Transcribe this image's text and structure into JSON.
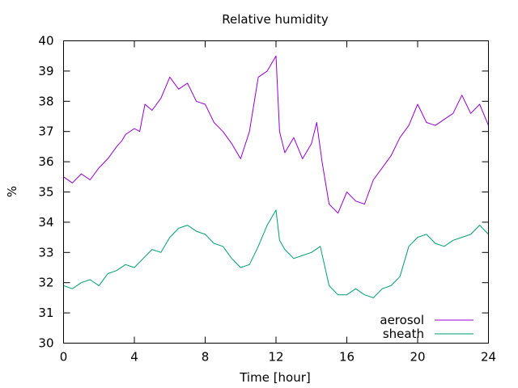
{
  "chart_data": {
    "type": "line",
    "title": "Relative humidity",
    "xlabel": "Time [hour]",
    "ylabel": "%",
    "xlim": [
      0,
      24
    ],
    "ylim": [
      30,
      40
    ],
    "xticks": [
      0,
      4,
      8,
      12,
      16,
      20,
      24
    ],
    "yticks": [
      30,
      31,
      32,
      33,
      34,
      35,
      36,
      37,
      38,
      39,
      40
    ],
    "grid": false,
    "legend": "bottom-right",
    "series": [
      {
        "name": "aerosol",
        "color": "#9400d3",
        "x": [
          0,
          0.5,
          1,
          1.5,
          2,
          2.5,
          3,
          3.3,
          3.5,
          4,
          4.3,
          4.6,
          5,
          5.5,
          6,
          6.5,
          7,
          7.5,
          8,
          8.5,
          9,
          9.5,
          10,
          10.5,
          11,
          11.5,
          12,
          12.2,
          12.5,
          13,
          13.5,
          14,
          14.3,
          14.6,
          15,
          15.5,
          16,
          16.5,
          17,
          17.5,
          18,
          18.5,
          19,
          19.5,
          20,
          20.5,
          21,
          21.5,
          22,
          22.5,
          23,
          23.5,
          24
        ],
        "y": [
          35.5,
          35.3,
          35.6,
          35.4,
          35.8,
          36.1,
          36.5,
          36.7,
          36.9,
          37.1,
          37.0,
          37.9,
          37.7,
          38.1,
          38.8,
          38.4,
          38.6,
          38.0,
          37.9,
          37.3,
          37.0,
          36.6,
          36.1,
          37.0,
          38.8,
          39.0,
          39.5,
          37.0,
          36.3,
          36.8,
          36.1,
          36.6,
          37.3,
          36.0,
          34.6,
          34.3,
          35.0,
          34.7,
          34.6,
          35.4,
          35.8,
          36.2,
          36.8,
          37.2,
          37.9,
          37.3,
          37.2,
          37.4,
          37.6,
          38.2,
          37.6,
          37.9,
          37.2
        ]
      },
      {
        "name": "sheath",
        "color": "#009e73",
        "x": [
          0,
          0.5,
          1,
          1.5,
          2,
          2.5,
          3,
          3.5,
          4,
          4.5,
          5,
          5.5,
          6,
          6.5,
          7,
          7.5,
          8,
          8.5,
          9,
          9.5,
          10,
          10.5,
          11,
          11.5,
          12,
          12.2,
          12.5,
          13,
          13.5,
          14,
          14.5,
          15,
          15.5,
          16,
          16.5,
          17,
          17.5,
          18,
          18.5,
          19,
          19.5,
          20,
          20.5,
          21,
          21.5,
          22,
          22.5,
          23,
          23.5,
          24
        ],
        "y": [
          31.9,
          31.8,
          32.0,
          32.1,
          31.9,
          32.3,
          32.4,
          32.6,
          32.5,
          32.8,
          33.1,
          33.0,
          33.5,
          33.8,
          33.9,
          33.7,
          33.6,
          33.3,
          33.2,
          32.8,
          32.5,
          32.6,
          33.2,
          33.9,
          34.4,
          33.4,
          33.1,
          32.8,
          32.9,
          33.0,
          33.2,
          31.9,
          31.6,
          31.6,
          31.8,
          31.6,
          31.5,
          31.8,
          31.9,
          32.2,
          33.2,
          33.5,
          33.6,
          33.3,
          33.2,
          33.4,
          33.5,
          33.6,
          33.9,
          33.6
        ]
      }
    ]
  }
}
